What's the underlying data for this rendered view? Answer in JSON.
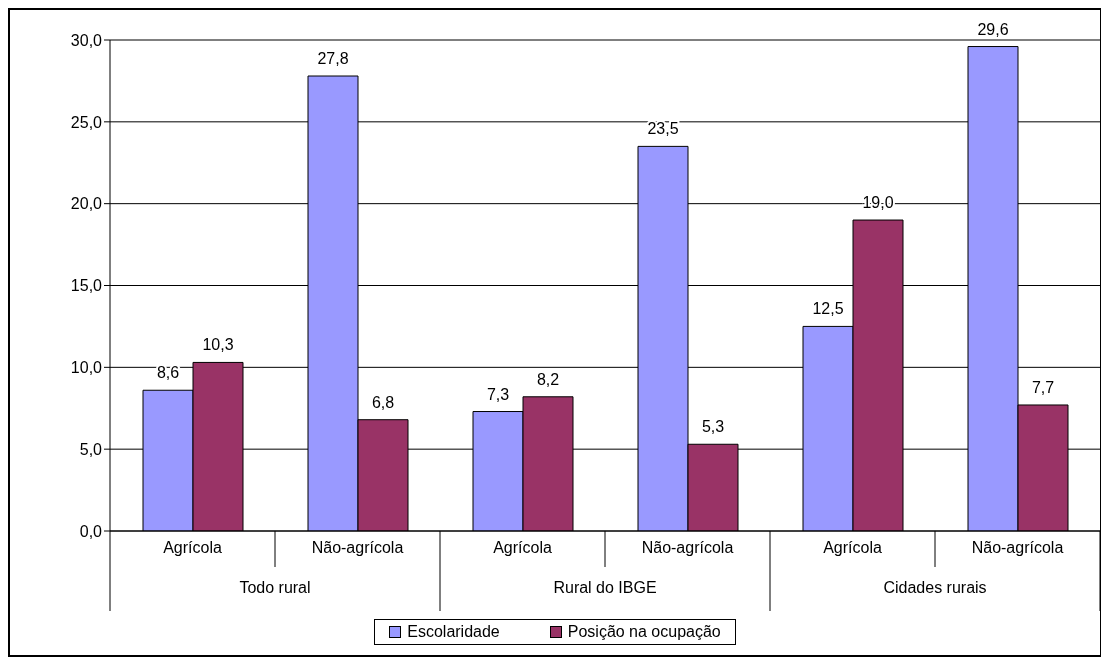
{
  "chart_data": {
    "type": "bar",
    "categories": [
      "Agrícola",
      "Não-agrícola",
      "Agrícola",
      "Não-agrícola",
      "Agrícola",
      "Não-agrícola"
    ],
    "series": [
      {
        "name": "Escolaridade",
        "color": "#9999ff",
        "values": [
          8.6,
          27.8,
          7.3,
          23.5,
          12.5,
          29.6
        ],
        "value_labels": [
          "8,6",
          "27,8",
          "7,3",
          "23,5",
          "12,5",
          "29,6"
        ]
      },
      {
        "name": "Posição na ocupação",
        "color": "#993366",
        "values": [
          10.3,
          6.8,
          8.2,
          5.3,
          19.0,
          7.7
        ],
        "value_labels": [
          "10,3",
          "6,8",
          "8,2",
          "5,3",
          "19,0",
          "7,7"
        ]
      }
    ],
    "annotations": [
      "Todo rural",
      "Rural do IBGE",
      "Cidades rurais"
    ],
    "ylim": [
      0,
      30
    ],
    "yticks": [
      {
        "value": 0,
        "label": "0,0"
      },
      {
        "value": 5,
        "label": "5,0"
      },
      {
        "value": 10,
        "label": "10,0"
      },
      {
        "value": 15,
        "label": "15,0"
      },
      {
        "value": 20,
        "label": "20,0"
      },
      {
        "value": 25,
        "label": "25,0"
      },
      {
        "value": 30,
        "label": "30,0"
      }
    ],
    "grid": "y",
    "legend": "bottom"
  }
}
